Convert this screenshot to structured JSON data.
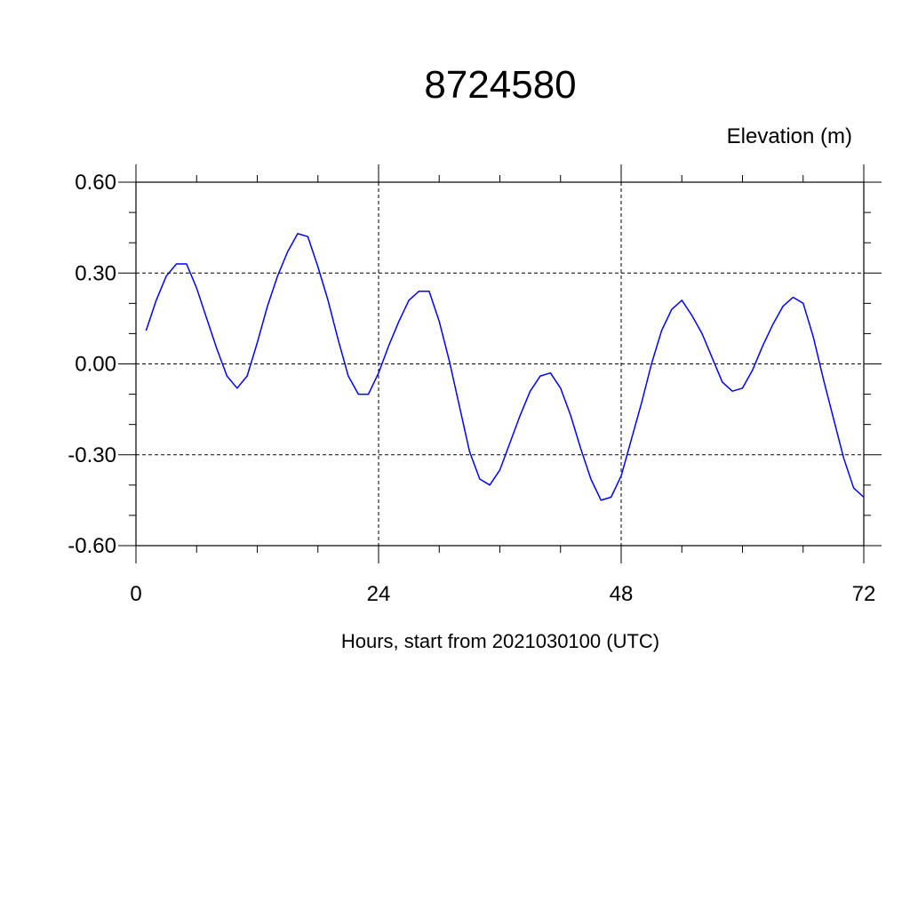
{
  "chart_data": {
    "type": "line",
    "title": "8724580",
    "ylabel": "Elevation (m)",
    "xlabel": "Hours, start from 2021030100 (UTC)",
    "xlim": [
      0,
      72
    ],
    "ylim": [
      -0.6,
      0.6
    ],
    "xticks": [
      0,
      24,
      48,
      72
    ],
    "xtick_labels": [
      "0",
      "24",
      "48",
      "72"
    ],
    "yticks": [
      -0.6,
      -0.3,
      0.0,
      0.3,
      0.6
    ],
    "ytick_labels": [
      "-0.60",
      "-0.30",
      "0.00",
      "0.30",
      "0.60"
    ],
    "grid": true,
    "series": [
      {
        "color": "#0000ff",
        "x": [
          1,
          2,
          3,
          4,
          5,
          6,
          7,
          8,
          9,
          10,
          11,
          12,
          13,
          14,
          15,
          16,
          17,
          18,
          19,
          20,
          21,
          22,
          23,
          24,
          25,
          26,
          27,
          28,
          29,
          30,
          31,
          32,
          33,
          34,
          35,
          36,
          37,
          38,
          39,
          40,
          41,
          42,
          43,
          44,
          45,
          46,
          47,
          48,
          49,
          50,
          51,
          52,
          53,
          54,
          55,
          56,
          57,
          58,
          59,
          60,
          61,
          62,
          63,
          64,
          65,
          66,
          67,
          68,
          69,
          70,
          71,
          72
        ],
        "y": [
          0.11,
          0.21,
          0.29,
          0.33,
          0.33,
          0.25,
          0.15,
          0.05,
          -0.04,
          -0.08,
          -0.04,
          0.07,
          0.19,
          0.29,
          0.37,
          0.43,
          0.42,
          0.32,
          0.21,
          0.08,
          -0.04,
          -0.1,
          -0.1,
          -0.03,
          0.06,
          0.14,
          0.21,
          0.24,
          0.24,
          0.14,
          0.01,
          -0.14,
          -0.29,
          -0.38,
          -0.4,
          -0.35,
          -0.26,
          -0.17,
          -0.09,
          -0.04,
          -0.03,
          -0.08,
          -0.17,
          -0.28,
          -0.38,
          -0.45,
          -0.44,
          -0.37,
          -0.25,
          -0.13,
          0.0,
          0.11,
          0.18,
          0.21,
          0.16,
          0.1,
          0.02,
          -0.06,
          -0.09,
          -0.08,
          -0.02,
          0.06,
          0.13,
          0.19,
          0.22,
          0.2,
          0.09,
          -0.05,
          -0.18,
          -0.31,
          -0.41,
          -0.44
        ]
      }
    ]
  }
}
